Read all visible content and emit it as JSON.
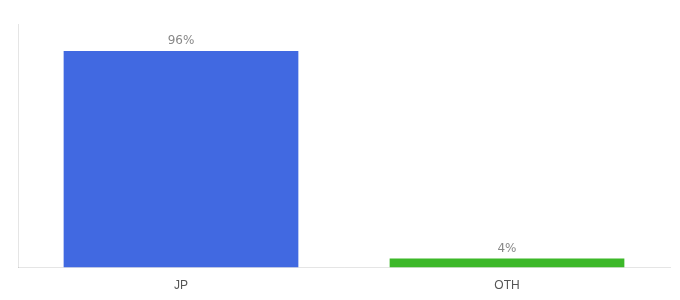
{
  "chart_data": {
    "type": "bar",
    "categories": [
      "JP",
      "OTH"
    ],
    "values": [
      96,
      4
    ],
    "colors": [
      "#4169e1",
      "#3cb829"
    ],
    "ylim": [
      0,
      108
    ],
    "data_labels": true,
    "value_labels": [
      "96%",
      "4%"
    ],
    "tick_labels": "x",
    "grid": false
  }
}
